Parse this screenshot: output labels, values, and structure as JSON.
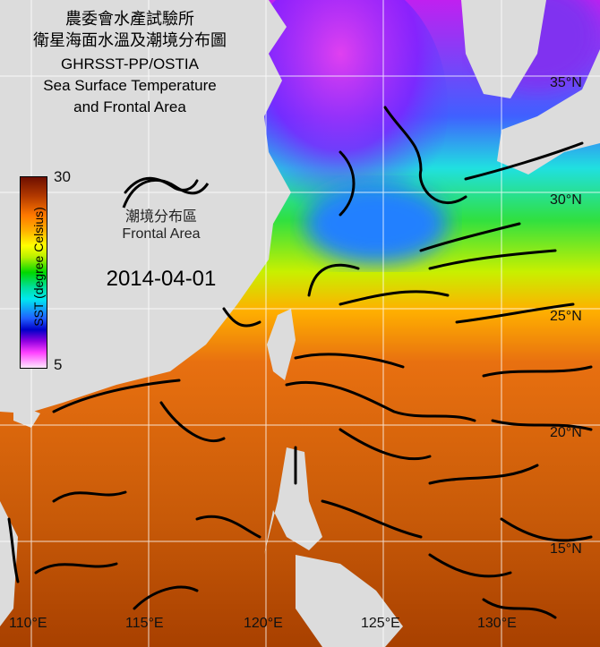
{
  "title_lines": [
    "農委會水產試驗所",
    "衛星海面水溫及潮境分布圖",
    "GHRSST-PP/OSTIA",
    "Sea Surface Temperature",
    "and Frontal Area"
  ],
  "colorbar": {
    "max": "30",
    "min": "5",
    "label": "SST (degree Celsius)",
    "colors": [
      "#6e0f00",
      "#ff7800",
      "#ffff00",
      "#00d800",
      "#00e8f0",
      "#0000c8",
      "#ff40ff",
      "#ffe8ff"
    ]
  },
  "legend": {
    "zh": "潮境分布區",
    "en": "Frontal Area"
  },
  "date": "2014-04-01",
  "lon_labels": [
    "110°E",
    "115°E",
    "120°E",
    "125°E",
    "130°E"
  ],
  "lat_labels": [
    "35°N",
    "30°N",
    "25°N",
    "20°N",
    "15°N"
  ],
  "colors": {
    "land": "#dcdcdc",
    "front": "#000000",
    "grid": "#ffffff"
  }
}
